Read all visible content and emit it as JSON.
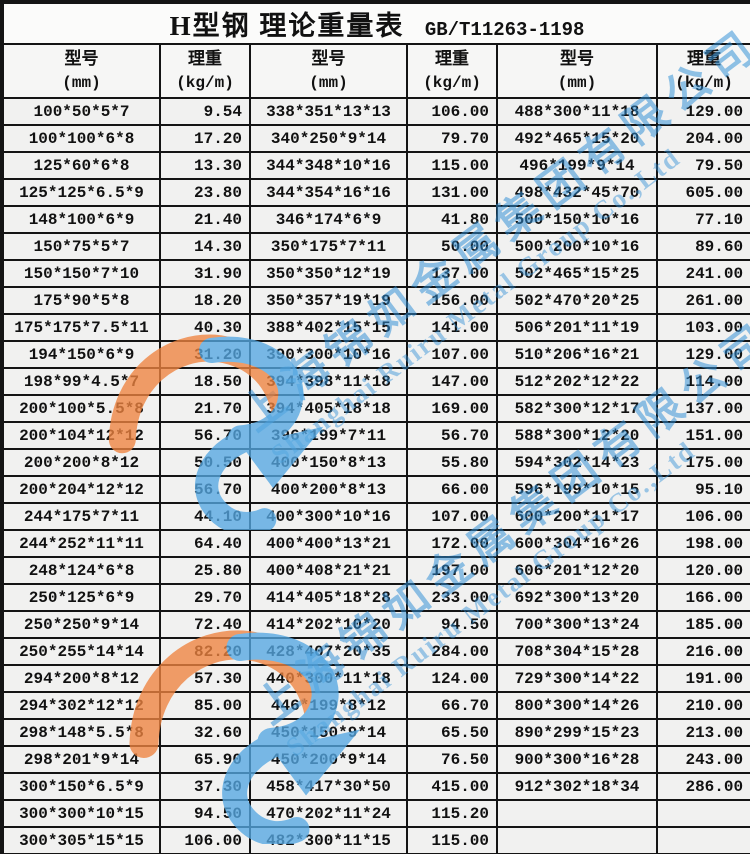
{
  "title": {
    "main": "H型钢 理论重量表",
    "standard": "GB/T11263-1198"
  },
  "header": {
    "model_label": "型号",
    "model_unit": "(mm)",
    "weight_label": "理重",
    "weight_unit": "(kg/m)"
  },
  "table": {
    "sections": [
      {
        "rows": [
          {
            "model": "100*50*5*7",
            "weight": "9.54"
          },
          {
            "model": "100*100*6*8",
            "weight": "17.20"
          },
          {
            "model": "125*60*6*8",
            "weight": "13.30"
          },
          {
            "model": "125*125*6.5*9",
            "weight": "23.80"
          },
          {
            "model": "148*100*6*9",
            "weight": "21.40"
          },
          {
            "model": "150*75*5*7",
            "weight": "14.30"
          },
          {
            "model": "150*150*7*10",
            "weight": "31.90"
          },
          {
            "model": "175*90*5*8",
            "weight": "18.20"
          },
          {
            "model": "175*175*7.5*11",
            "weight": "40.30"
          },
          {
            "model": "194*150*6*9",
            "weight": "31.20"
          },
          {
            "model": "198*99*4.5*7",
            "weight": "18.50"
          },
          {
            "model": "200*100*5.5*8",
            "weight": "21.70"
          },
          {
            "model": "200*104*12*12",
            "weight": "56.70"
          },
          {
            "model": "200*200*8*12",
            "weight": "50.50"
          },
          {
            "model": "200*204*12*12",
            "weight": "56.70"
          },
          {
            "model": "244*175*7*11",
            "weight": "44.10"
          },
          {
            "model": "244*252*11*11",
            "weight": "64.40"
          },
          {
            "model": "248*124*6*8",
            "weight": "25.80"
          },
          {
            "model": "250*125*6*9",
            "weight": "29.70"
          },
          {
            "model": "250*250*9*14",
            "weight": "72.40"
          },
          {
            "model": "250*255*14*14",
            "weight": "82.20"
          },
          {
            "model": "294*200*8*12",
            "weight": "57.30"
          },
          {
            "model": "294*302*12*12",
            "weight": "85.00"
          },
          {
            "model": "298*148*5.5*8",
            "weight": "32.60"
          },
          {
            "model": "298*201*9*14",
            "weight": "65.90"
          },
          {
            "model": "300*150*6.5*9",
            "weight": "37.30"
          },
          {
            "model": "300*300*10*15",
            "weight": "94.50"
          },
          {
            "model": "300*305*15*15",
            "weight": "106.00"
          }
        ]
      },
      {
        "rows": [
          {
            "model": "338*351*13*13",
            "weight": "106.00"
          },
          {
            "model": "340*250*9*14",
            "weight": "79.70"
          },
          {
            "model": "344*348*10*16",
            "weight": "115.00"
          },
          {
            "model": "344*354*16*16",
            "weight": "131.00"
          },
          {
            "model": "346*174*6*9",
            "weight": "41.80"
          },
          {
            "model": "350*175*7*11",
            "weight": "50.00"
          },
          {
            "model": "350*350*12*19",
            "weight": "137.00"
          },
          {
            "model": "350*357*19*19",
            "weight": "156.00"
          },
          {
            "model": "388*402*15*15",
            "weight": "141.00"
          },
          {
            "model": "390*300*10*16",
            "weight": "107.00"
          },
          {
            "model": "394*398*11*18",
            "weight": "147.00"
          },
          {
            "model": "394*405*18*18",
            "weight": "169.00"
          },
          {
            "model": "396*199*7*11",
            "weight": "56.70"
          },
          {
            "model": "400*150*8*13",
            "weight": "55.80"
          },
          {
            "model": "400*200*8*13",
            "weight": "66.00"
          },
          {
            "model": "400*300*10*16",
            "weight": "107.00"
          },
          {
            "model": "400*400*13*21",
            "weight": "172.00"
          },
          {
            "model": "400*408*21*21",
            "weight": "197.00"
          },
          {
            "model": "414*405*18*28",
            "weight": "233.00"
          },
          {
            "model": "414*202*10*20",
            "weight": "94.50"
          },
          {
            "model": "428*407*20*35",
            "weight": "284.00"
          },
          {
            "model": "440*300*11*18",
            "weight": "124.00"
          },
          {
            "model": "446*199*8*12",
            "weight": "66.70"
          },
          {
            "model": "450*150*9*14",
            "weight": "65.50"
          },
          {
            "model": "450*200*9*14",
            "weight": "76.50"
          },
          {
            "model": "458*417*30*50",
            "weight": "415.00"
          },
          {
            "model": "470*202*11*24",
            "weight": "115.20"
          },
          {
            "model": "482*300*11*15",
            "weight": "115.00"
          }
        ]
      },
      {
        "rows": [
          {
            "model": "488*300*11*18",
            "weight": "129.00"
          },
          {
            "model": "492*465*15*20",
            "weight": "204.00"
          },
          {
            "model": "496*199*9*14",
            "weight": "79.50"
          },
          {
            "model": "498*432*45*70",
            "weight": "605.00"
          },
          {
            "model": "500*150*10*16",
            "weight": "77.10"
          },
          {
            "model": "500*200*10*16",
            "weight": "89.60"
          },
          {
            "model": "502*465*15*25",
            "weight": "241.00"
          },
          {
            "model": "502*470*20*25",
            "weight": "261.00"
          },
          {
            "model": "506*201*11*19",
            "weight": "103.00"
          },
          {
            "model": "510*206*16*21",
            "weight": "129.00"
          },
          {
            "model": "512*202*12*22",
            "weight": "114.00"
          },
          {
            "model": "582*300*12*17",
            "weight": "137.00"
          },
          {
            "model": "588*300*12*20",
            "weight": "151.00"
          },
          {
            "model": "594*302*14*23",
            "weight": "175.00"
          },
          {
            "model": "596*199*10*15",
            "weight": "95.10"
          },
          {
            "model": "600*200*11*17",
            "weight": "106.00"
          },
          {
            "model": "600*304*16*26",
            "weight": "198.00"
          },
          {
            "model": "606*201*12*20",
            "weight": "120.00"
          },
          {
            "model": "692*300*13*20",
            "weight": "166.00"
          },
          {
            "model": "700*300*13*24",
            "weight": "185.00"
          },
          {
            "model": "708*304*15*28",
            "weight": "216.00"
          },
          {
            "model": "729*300*14*22",
            "weight": "191.00"
          },
          {
            "model": "800*300*14*26",
            "weight": "210.00"
          },
          {
            "model": "890*299*15*23",
            "weight": "213.00"
          },
          {
            "model": "900*300*16*28",
            "weight": "243.00"
          },
          {
            "model": "912*302*18*34",
            "weight": "286.00"
          },
          {
            "model": "",
            "weight": ""
          },
          {
            "model": "",
            "weight": ""
          }
        ]
      }
    ]
  },
  "watermark": {
    "company_cn": "上海锦如金属集团有限公司",
    "company_en": "Shanghai Ruiru Metal Group Co.,Ltd",
    "colors": {
      "blue": "#55a8e2",
      "orange": "#ef8440",
      "text_blue": "#2f8fd6"
    }
  }
}
